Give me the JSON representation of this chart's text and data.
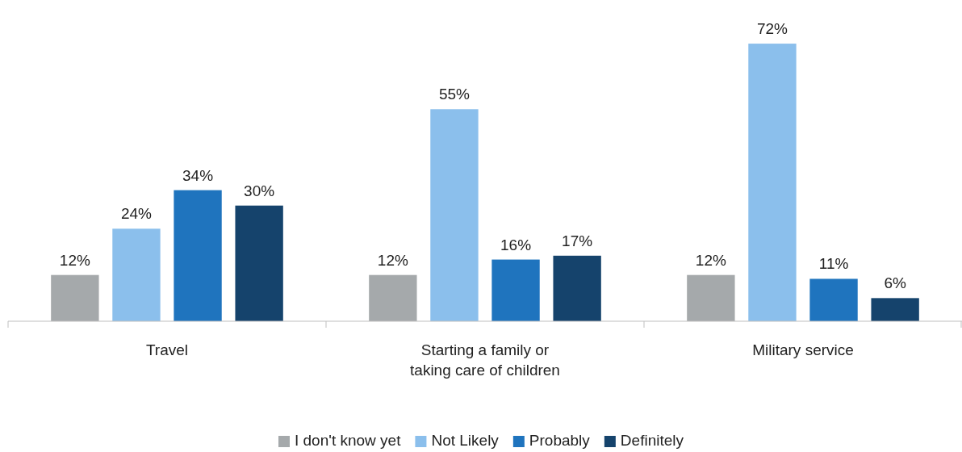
{
  "chart_data": {
    "type": "bar",
    "categories": [
      "Travel",
      "Starting a family or taking care of children",
      "Military service"
    ],
    "series": [
      {
        "name": "I don't know yet",
        "color": "#a5a9ab",
        "values": [
          12,
          12,
          12
        ],
        "value_labels": [
          "12%",
          "12%",
          "12%"
        ]
      },
      {
        "name": "Not Likely",
        "color": "#8bbfec",
        "values": [
          24,
          55,
          72
        ],
        "value_labels": [
          "24%",
          "55%",
          "72%"
        ]
      },
      {
        "name": "Probably",
        "color": "#1f74be",
        "values": [
          34,
          16,
          11
        ],
        "value_labels": [
          "34%",
          "16%",
          "11%"
        ]
      },
      {
        "name": "Definitely",
        "color": "#15436c",
        "values": [
          30,
          17,
          6
        ],
        "value_labels": [
          "30%",
          "17%",
          "6%"
        ]
      }
    ],
    "legend": "bottom"
  }
}
